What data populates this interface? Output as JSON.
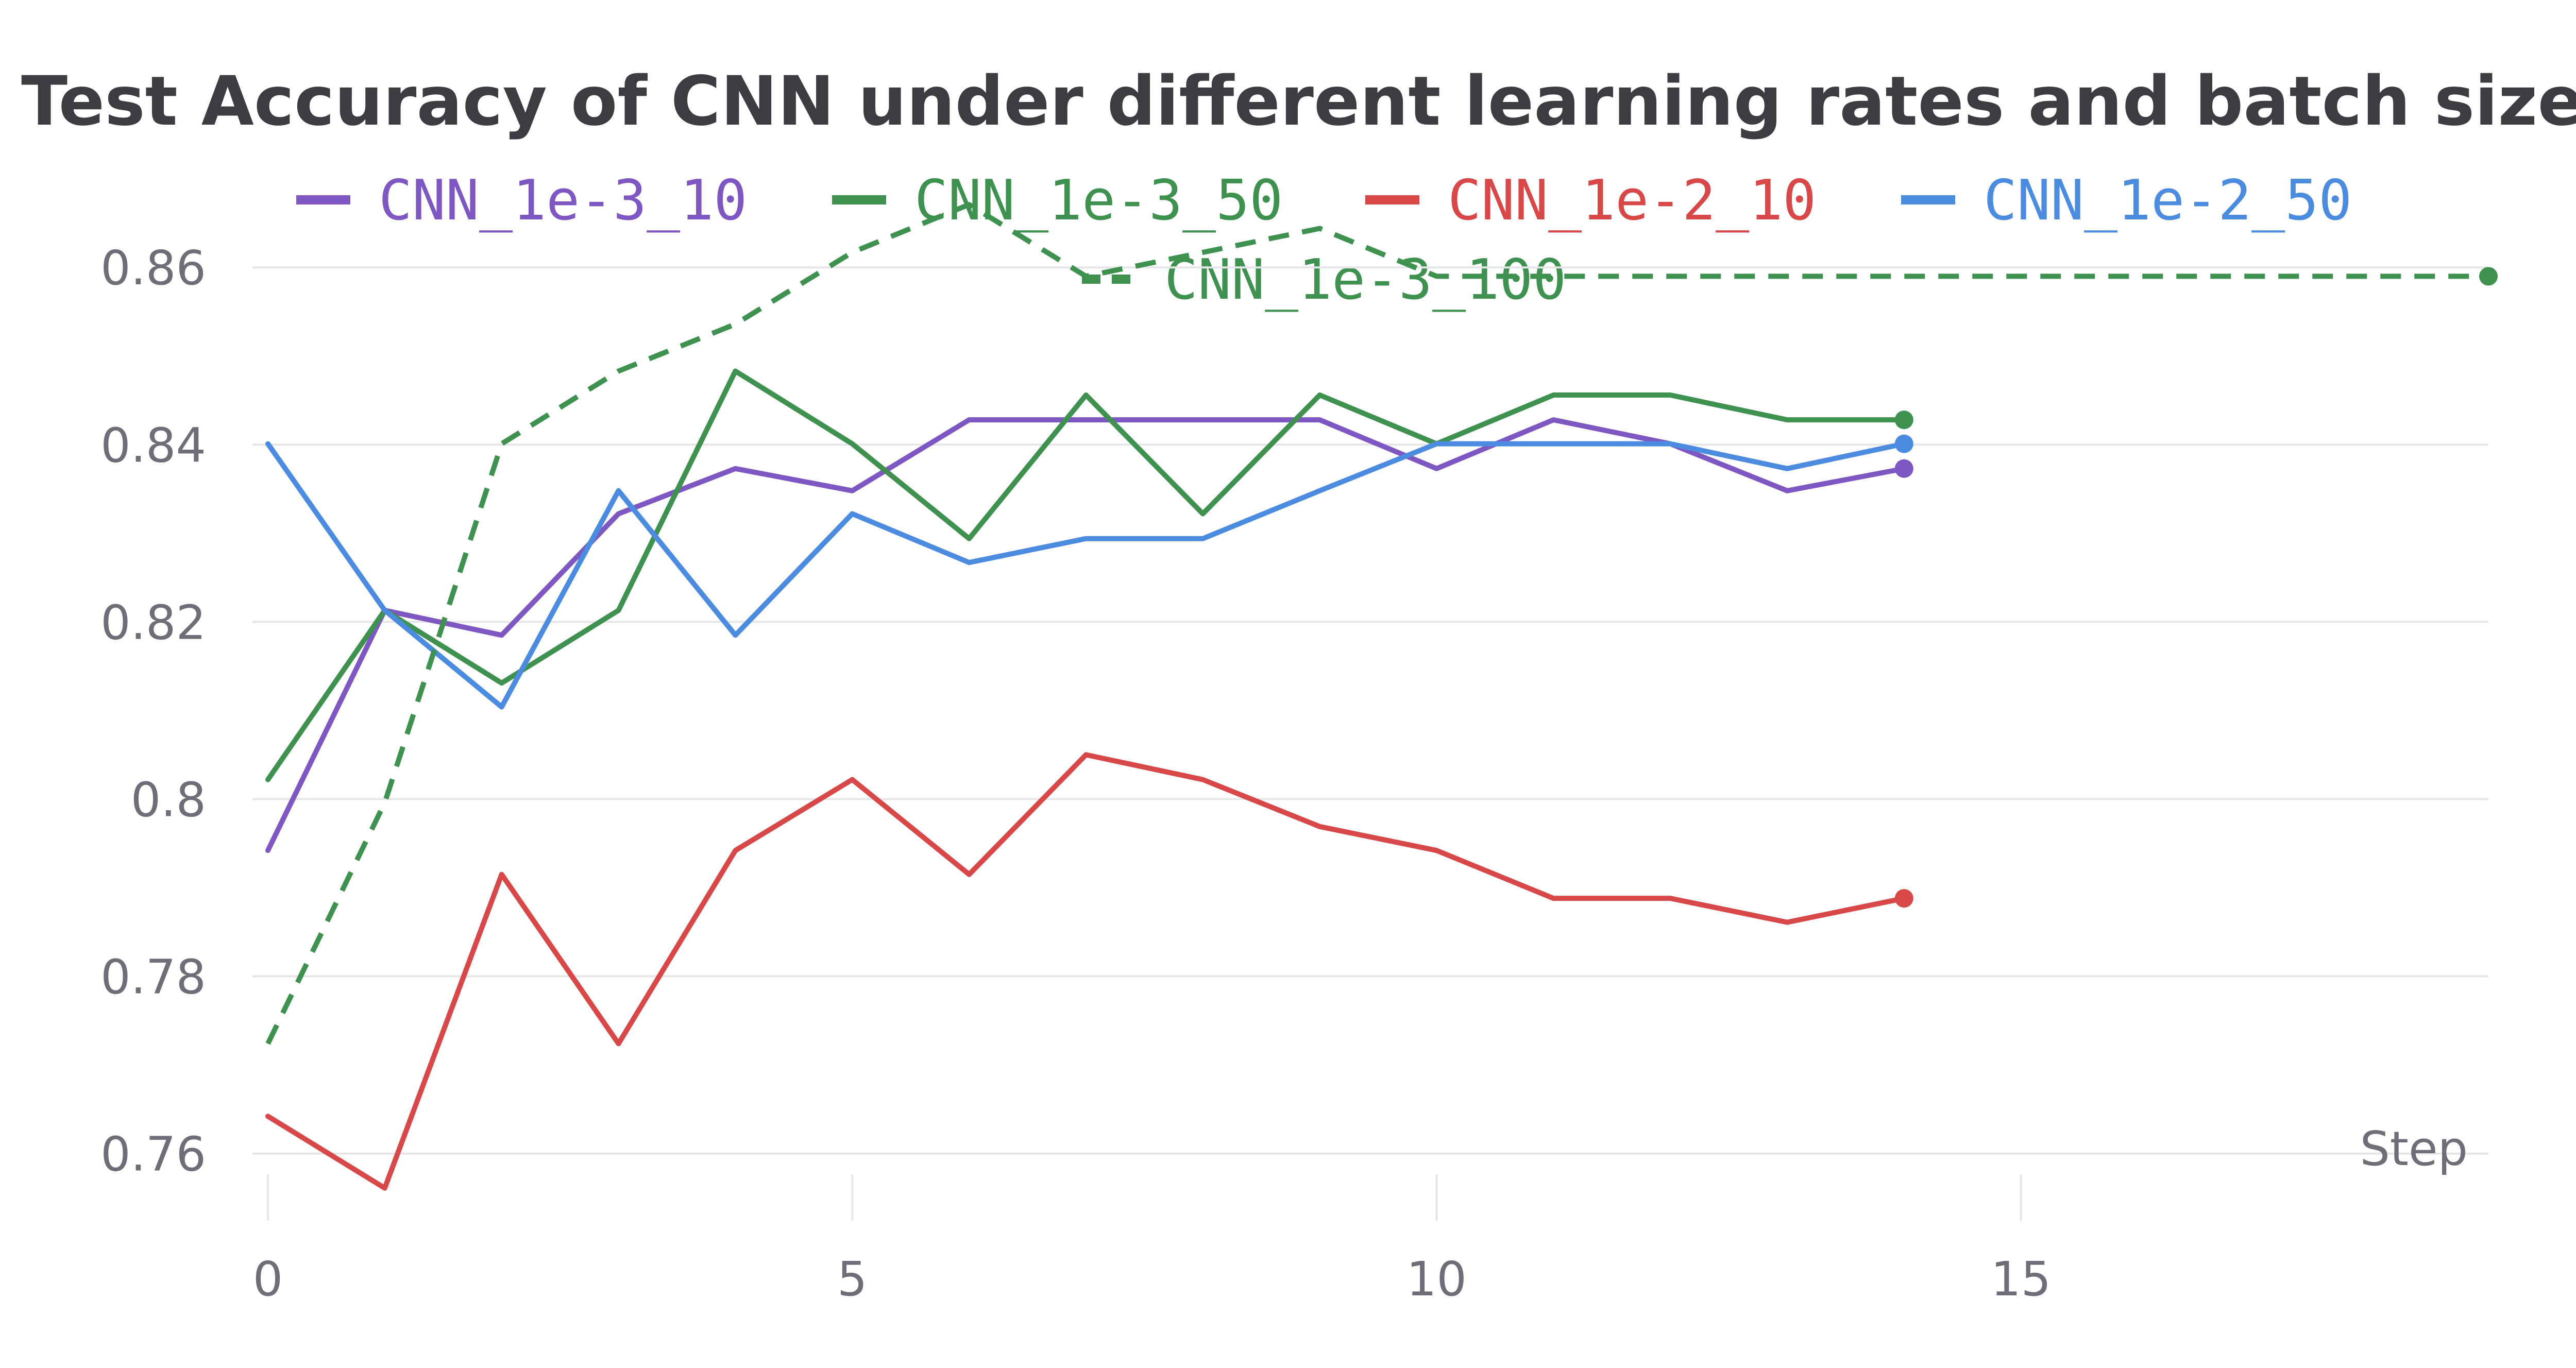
{
  "chart_data": {
    "type": "line",
    "title": "Test Accuracy of CNN under different learning rates and batch size",
    "xlabel": "Step",
    "ylabel": "",
    "xlim": [
      0,
      19
    ],
    "ylim": [
      0.753,
      0.871
    ],
    "x_ticks": [
      "0",
      "5",
      "10",
      "15"
    ],
    "y_ticks": [
      "0.76",
      "0.78",
      "0.8",
      "0.82",
      "0.84",
      "0.86"
    ],
    "grid": "horizontal",
    "legend_position": "top-center",
    "series": [
      {
        "name": "CNN_1e-3_10",
        "color": "#7e57c2",
        "dash": "solid",
        "x": [
          0,
          1,
          2,
          3,
          4,
          5,
          6,
          7,
          8,
          9,
          10,
          11,
          12,
          13,
          14
        ],
        "y": [
          0.7942,
          0.8213,
          0.8185,
          0.8322,
          0.8373,
          0.8348,
          0.8428,
          0.8428,
          0.8428,
          0.8428,
          0.8373,
          0.8428,
          0.8401,
          0.8348,
          0.8373
        ]
      },
      {
        "name": "CNN_1e-3_50",
        "color": "#3f9150",
        "dash": "solid",
        "x": [
          0,
          1,
          2,
          3,
          4,
          5,
          6,
          7,
          8,
          9,
          10,
          11,
          12,
          13,
          14
        ],
        "y": [
          0.8022,
          0.8213,
          0.8131,
          0.8213,
          0.8483,
          0.8401,
          0.8294,
          0.8456,
          0.8322,
          0.8456,
          0.8401,
          0.8456,
          0.8456,
          0.8428,
          0.8428
        ]
      },
      {
        "name": "CNN_1e-2_10",
        "color": "#d94848",
        "dash": "solid",
        "x": [
          0,
          1,
          2,
          3,
          4,
          5,
          6,
          7,
          8,
          9,
          10,
          11,
          12,
          13,
          14
        ],
        "y": [
          0.7642,
          0.7561,
          0.7915,
          0.7724,
          0.7942,
          0.8022,
          0.7915,
          0.805,
          0.8022,
          0.7969,
          0.7942,
          0.7888,
          0.7888,
          0.7861,
          0.7888
        ]
      },
      {
        "name": "CNN_1e-2_50",
        "color": "#4c8ce0",
        "dash": "solid",
        "x": [
          0,
          1,
          2,
          3,
          4,
          5,
          6,
          7,
          8,
          9,
          10,
          11,
          12,
          13,
          14
        ],
        "y": [
          0.8401,
          0.8213,
          0.8104,
          0.8348,
          0.8185,
          0.8322,
          0.8267,
          0.8294,
          0.8294,
          0.8348,
          0.8401,
          0.8401,
          0.8401,
          0.8373,
          0.8401
        ]
      },
      {
        "name": "CNN_1e-3_100",
        "color": "#3f9150",
        "dash": "dashed",
        "x": [
          0,
          1,
          2,
          3,
          4,
          5,
          6,
          7,
          8,
          9,
          10,
          11,
          12,
          13,
          14,
          15,
          16,
          17,
          18,
          19
        ],
        "y": [
          0.7724,
          0.7996,
          0.8401,
          0.8483,
          0.8536,
          0.8617,
          0.8671,
          0.859,
          0.8617,
          0.8644,
          0.859,
          0.859,
          0.859,
          0.859,
          0.859,
          0.859,
          0.859,
          0.859,
          0.859,
          0.859
        ]
      }
    ]
  }
}
